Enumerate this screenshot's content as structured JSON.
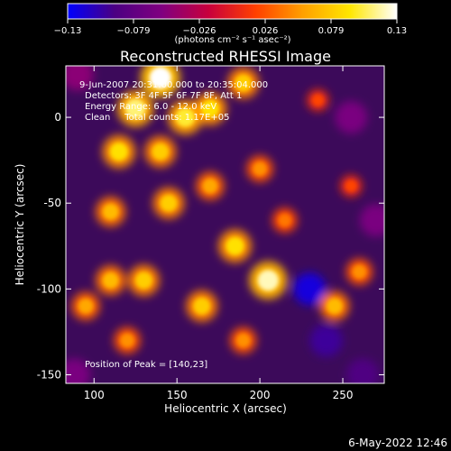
{
  "chart_data": {
    "type": "heatmap",
    "title": "Reconstructed RHESSI Image",
    "xlabel": "Heliocentric X (arcsec)",
    "ylabel": "Heliocentric Y (arcsec)",
    "xlim": [
      83,
      275
    ],
    "ylim": [
      -155,
      30
    ],
    "x_ticks": [
      100,
      150,
      200,
      250
    ],
    "y_ticks": [
      0,
      -50,
      -100,
      -150
    ],
    "colorbar": {
      "label": "(photons cm⁻² s⁻¹ asec⁻²)",
      "range": [
        -0.13,
        0.13
      ],
      "ticks": [
        "−0.13",
        "−0.079",
        "−0.026",
        "0.026",
        "0.079",
        "0.13"
      ],
      "colormap": [
        "#0000ff",
        "#4b0082",
        "#800080",
        "#c8003c",
        "#ff4000",
        "#ffa000",
        "#ffe600",
        "#ffffff"
      ]
    },
    "annotations": [
      "9-Jun-2007 20:31:00.000 to 20:35:04.000",
      "Detectors: 3F 4F 5F 6F 7F 8F, Att 1",
      "Energy Range: 6.0 - 12.0 keV",
      "Clean     Total counts: 1.17E+05"
    ],
    "peak_label": "Position of Peak = [140,23]",
    "peak_position": [
      140,
      23
    ],
    "emission_blobs": [
      {
        "x": 140,
        "y": 23,
        "value": 0.13
      },
      {
        "x": 125,
        "y": 5,
        "value": 0.11
      },
      {
        "x": 155,
        "y": 0,
        "value": 0.1
      },
      {
        "x": 115,
        "y": -20,
        "value": 0.09
      },
      {
        "x": 170,
        "y": 5,
        "value": 0.09
      },
      {
        "x": 140,
        "y": -20,
        "value": 0.08
      },
      {
        "x": 190,
        "y": 20,
        "value": 0.08
      },
      {
        "x": 110,
        "y": -55,
        "value": 0.07
      },
      {
        "x": 145,
        "y": -50,
        "value": 0.08
      },
      {
        "x": 170,
        "y": -40,
        "value": 0.06
      },
      {
        "x": 200,
        "y": -30,
        "value": 0.05
      },
      {
        "x": 205,
        "y": -95,
        "value": 0.12
      },
      {
        "x": 185,
        "y": -75,
        "value": 0.09
      },
      {
        "x": 165,
        "y": -110,
        "value": 0.08
      },
      {
        "x": 130,
        "y": -95,
        "value": 0.08
      },
      {
        "x": 110,
        "y": -95,
        "value": 0.07
      },
      {
        "x": 95,
        "y": -110,
        "value": 0.06
      },
      {
        "x": 245,
        "y": -110,
        "value": 0.07
      },
      {
        "x": 260,
        "y": -90,
        "value": 0.05
      },
      {
        "x": 190,
        "y": -130,
        "value": 0.05
      },
      {
        "x": 120,
        "y": -130,
        "value": 0.05
      },
      {
        "x": 215,
        "y": -60,
        "value": 0.04
      },
      {
        "x": 235,
        "y": 10,
        "value": 0.02
      },
      {
        "x": 255,
        "y": -40,
        "value": 0.02
      }
    ],
    "negative_blobs": [
      {
        "x": 230,
        "y": -100,
        "value": -0.12
      },
      {
        "x": 240,
        "y": -130,
        "value": -0.1
      },
      {
        "x": 262,
        "y": -150,
        "value": -0.09
      },
      {
        "x": 255,
        "y": 0,
        "value": -0.06
      },
      {
        "x": 270,
        "y": -60,
        "value": -0.06
      },
      {
        "x": 90,
        "y": 25,
        "value": -0.05
      },
      {
        "x": 88,
        "y": -150,
        "value": -0.06
      }
    ]
  },
  "footer": {
    "date": "6-May-2022 12:46"
  }
}
